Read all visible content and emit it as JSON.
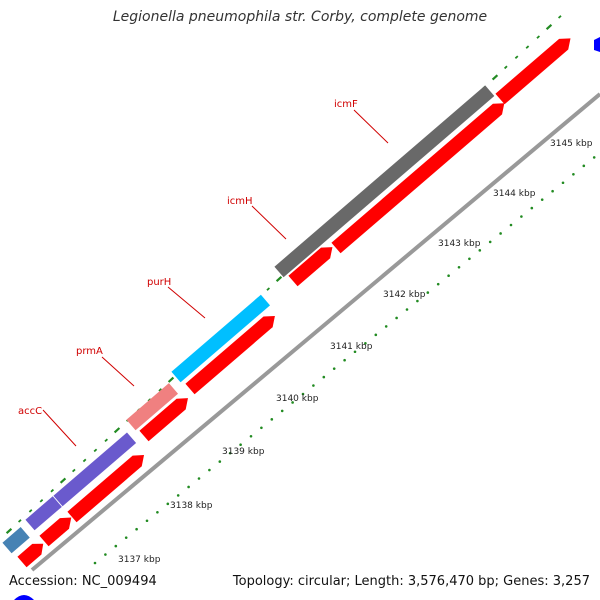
{
  "title": "Legionella pneumophila str. Corby, complete genome",
  "footer": {
    "accession": "Accession: NC_009494",
    "info": "Topology: circular; Length: 3,576,470 bp; Genes: 3,257"
  },
  "ticks": [
    "3137 kbp",
    "3138 kbp",
    "3139 kbp",
    "3140 kbp",
    "3141 kbp",
    "3142 kbp",
    "3143 kbp",
    "3144 kbp",
    "3145 kbp"
  ],
  "gene_labels": [
    "accC",
    "prmA",
    "purH",
    "icmH",
    "icmF"
  ],
  "colors": {
    "cds": "#ff0000",
    "backbone": "#999999",
    "tick_green": "#228b22",
    "label_red": "#d00000",
    "cog_steelblue": "#4682b4",
    "cog_slateblue": "#6a5acd",
    "cog_lightcoral": "#f08080",
    "cog_deepskyblue": "#00bfff",
    "cog_dimgray": "#696969",
    "corner_blue": "#0000ff"
  }
}
